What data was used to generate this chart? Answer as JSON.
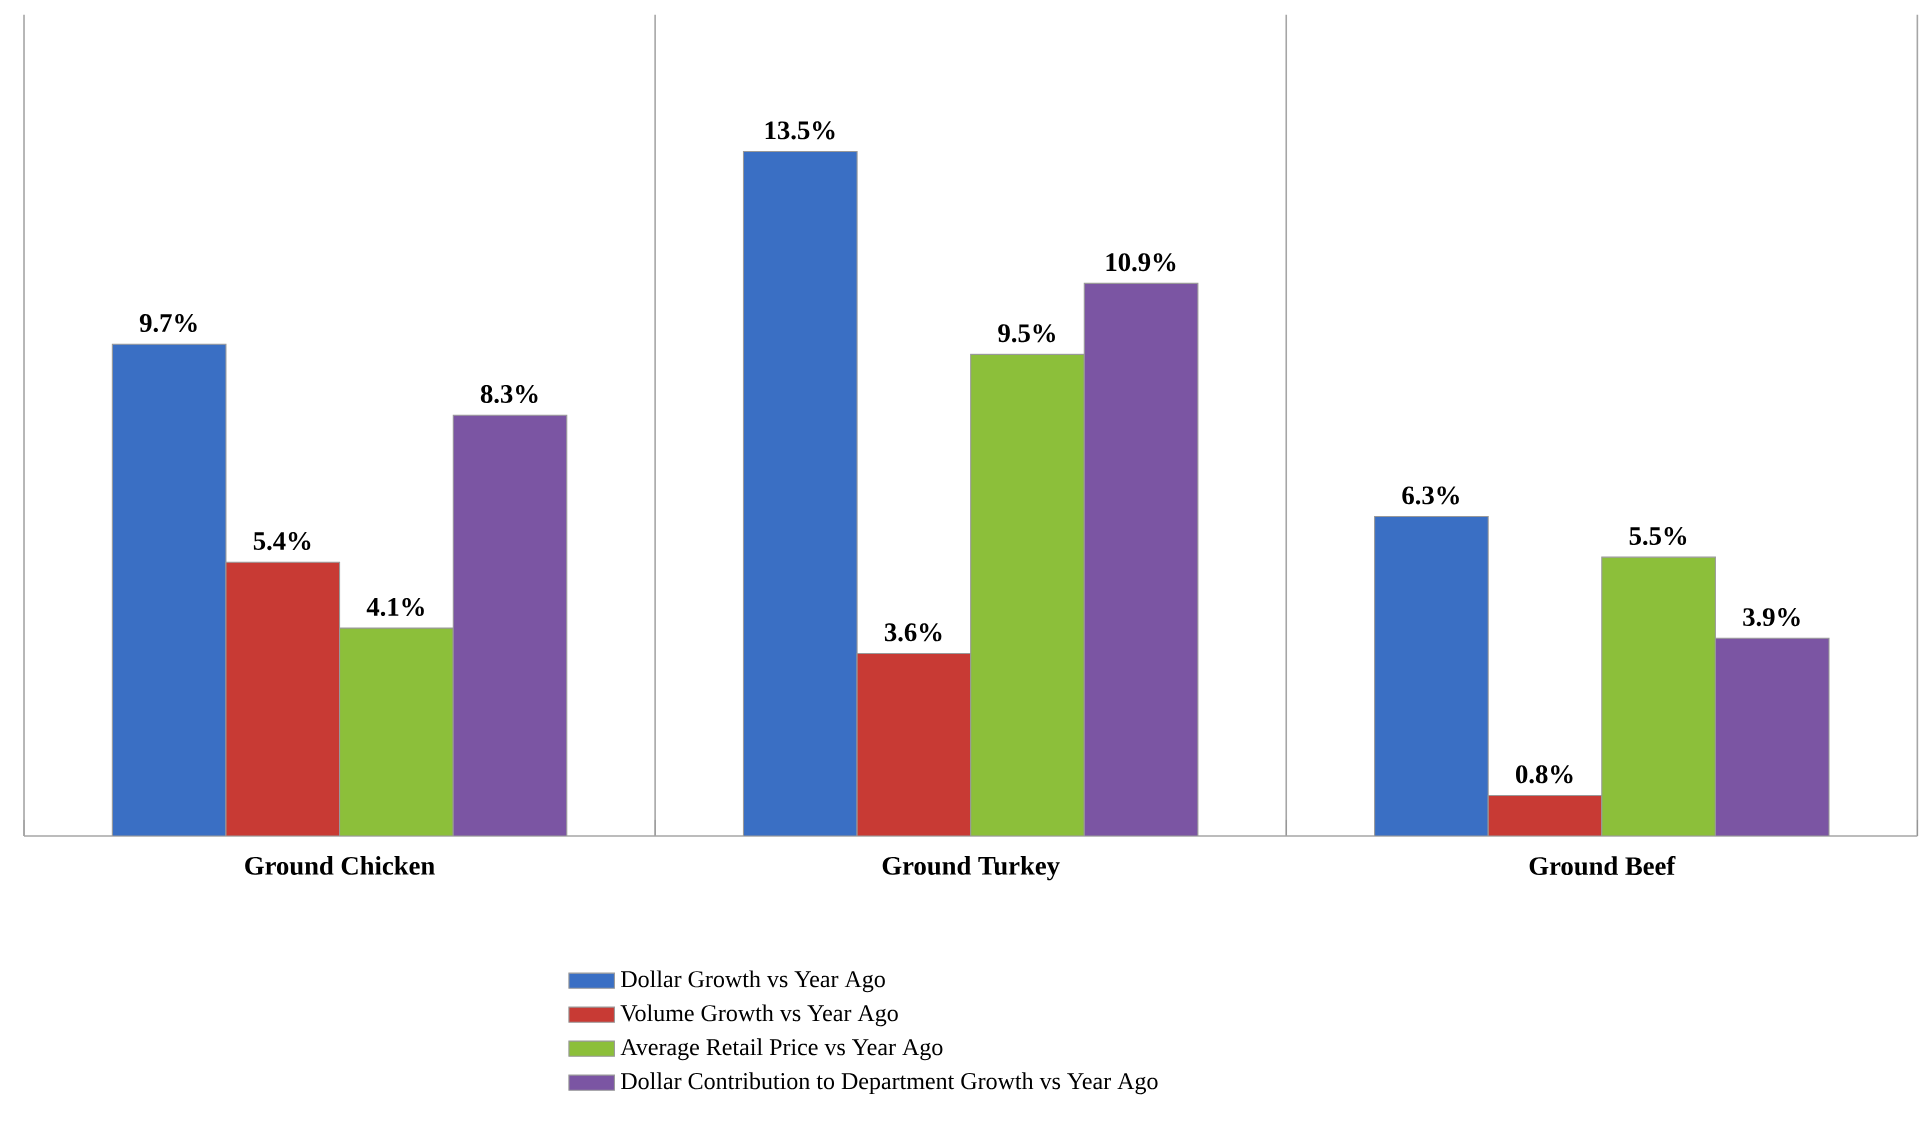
{
  "chart_data": {
    "type": "bar",
    "categories": [
      "Ground Chicken",
      "Ground Turkey",
      "Ground Beef"
    ],
    "series": [
      {
        "name": "Dollar Growth vs Year Ago",
        "color": "#3a6fc4",
        "values": [
          9.7,
          13.5,
          6.3
        ],
        "value_labels": [
          "9.7%",
          "13.5%",
          "6.3%"
        ]
      },
      {
        "name": "Volume Growth vs Year Ago",
        "color": "#c83a34",
        "values": [
          5.4,
          3.6,
          0.8
        ],
        "value_labels": [
          "5.4%",
          "3.6%",
          "0.8%"
        ]
      },
      {
        "name": "Average Retail Price vs Year Ago",
        "color": "#8cbf3a",
        "values": [
          4.1,
          9.5,
          5.5
        ],
        "value_labels": [
          "4.1%",
          "9.5%",
          "5.5%"
        ]
      },
      {
        "name": "Dollar Contribution to Department Growth vs Year Ago",
        "color": "#7b55a3",
        "values": [
          8.3,
          10.9,
          3.9
        ],
        "value_labels": [
          "8.3%",
          "10.9%",
          "3.9%"
        ]
      }
    ],
    "legend": "bottom"
  }
}
